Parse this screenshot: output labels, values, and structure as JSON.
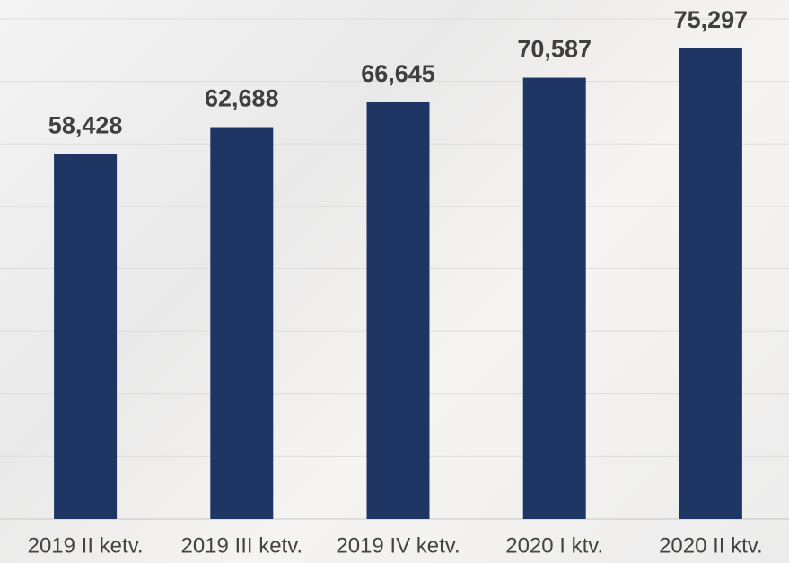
{
  "chart_data": {
    "type": "bar",
    "categories": [
      "2019 II ketv.",
      "2019 III ketv.",
      "2019 IV ketv.",
      "2020 I ktv.",
      "2020 II ktv."
    ],
    "values": [
      58428,
      62688,
      66645,
      70587,
      75297
    ],
    "value_labels": [
      "58,428",
      "62,688",
      "66,645",
      "70,587",
      "75,297"
    ],
    "color": "#1f3664",
    "ylim": [
      0,
      80000
    ],
    "yticks": [
      0,
      10000,
      20000,
      30000,
      40000,
      50000,
      60000,
      70000,
      80000
    ],
    "grid": true
  }
}
